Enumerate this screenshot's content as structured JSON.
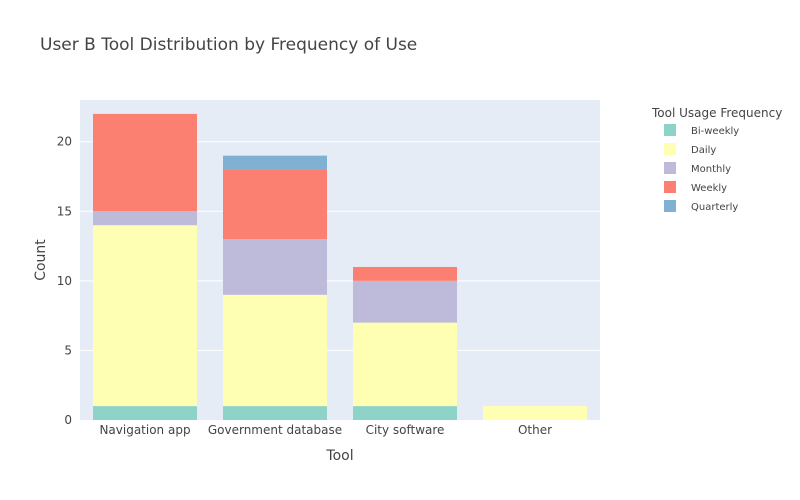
{
  "chart_data": {
    "type": "bar",
    "barmode": "stack",
    "title": "User B Tool Distribution by Frequency of Use",
    "xlabel": "Tool",
    "ylabel": "Count",
    "categories": [
      "Navigation app",
      "Government database",
      "City software",
      "Other"
    ],
    "ylim": [
      0,
      23
    ],
    "yticks": [
      0,
      5,
      10,
      15,
      20
    ],
    "grid": true,
    "legend_title": "Tool Usage Frequency",
    "legend_position": "right",
    "series": [
      {
        "name": "Bi-weekly",
        "color": "#8dd3c7",
        "values": [
          1,
          1,
          1,
          0
        ]
      },
      {
        "name": "Daily",
        "color": "#ffffb3",
        "values": [
          13,
          8,
          6,
          1
        ]
      },
      {
        "name": "Monthly",
        "color": "#bebada",
        "values": [
          1,
          4,
          3,
          0
        ]
      },
      {
        "name": "Weekly",
        "color": "#fb8072",
        "values": [
          7,
          5,
          1,
          0
        ]
      },
      {
        "name": "Quarterly",
        "color": "#80b1d3",
        "values": [
          0,
          1,
          0,
          0
        ]
      }
    ]
  }
}
